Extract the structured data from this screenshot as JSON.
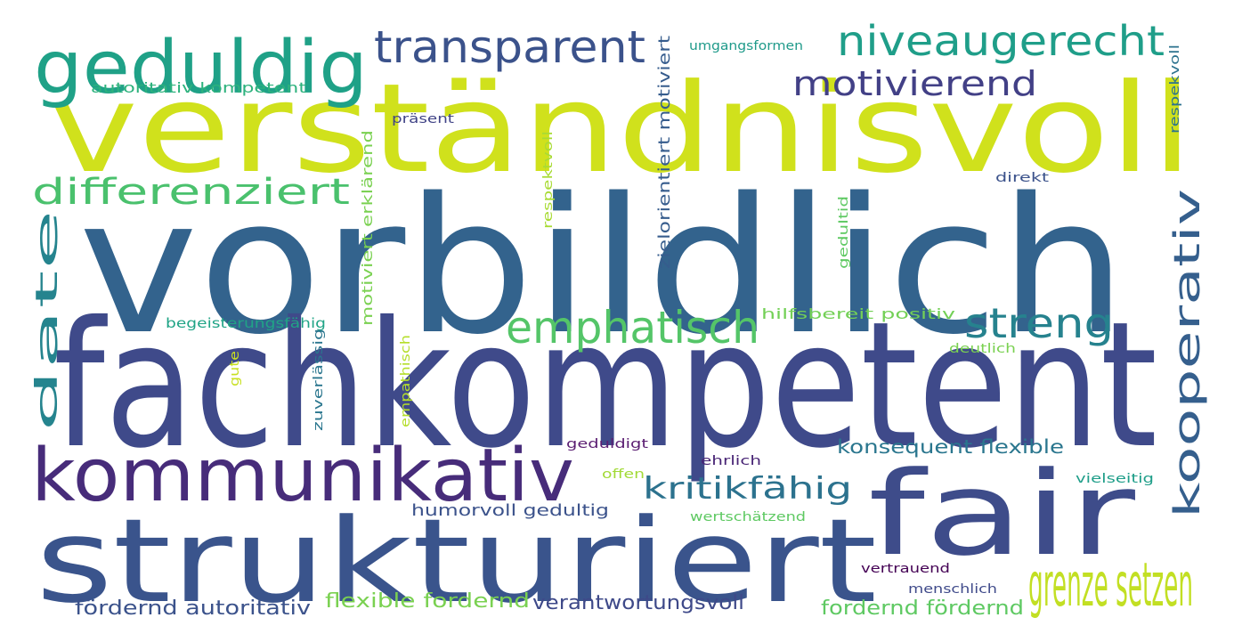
{
  "words": [
    {
      "text": "vorbildlich",
      "color": "#33638d"
    },
    {
      "text": "fachkompetent",
      "color": "#3f4a8a"
    },
    {
      "text": "verständnisvoll",
      "color": "#d0e11c"
    },
    {
      "text": "strukturiert",
      "color": "#3a548c"
    },
    {
      "text": "fair",
      "color": "#3e4c8a"
    },
    {
      "text": "kommunikativ",
      "color": "#472c7a"
    },
    {
      "text": "geduldig",
      "color": "#1fa187"
    },
    {
      "text": "transparent",
      "color": "#3b528b"
    },
    {
      "text": "niveaugerecht",
      "color": "#1f9e89"
    },
    {
      "text": "motivierend",
      "color": "#424086"
    },
    {
      "text": "differenziert",
      "color": "#4ac16d"
    },
    {
      "text": "emphatisch",
      "color": "#54c568"
    },
    {
      "text": "streng",
      "color": "#26828e"
    },
    {
      "text": "grenze setzen",
      "color": "#c2df23"
    },
    {
      "text": "kooperativ",
      "color": "#355f8d"
    },
    {
      "text": "date",
      "color": "#25848e"
    },
    {
      "text": "kritikfähig",
      "color": "#2c728e"
    },
    {
      "text": "konsequent flexible",
      "color": "#2a768e"
    },
    {
      "text": "fördernd autoritativ",
      "color": "#3b528b"
    },
    {
      "text": "flexible fordernd",
      "color": "#7ad151"
    },
    {
      "text": "verantwortungsvoll",
      "color": "#3e4989"
    },
    {
      "text": "fordernd fördernd",
      "color": "#5ec962"
    },
    {
      "text": "humorvoll gedultig",
      "color": "#3b528b"
    },
    {
      "text": "autoritativ kompetent",
      "color": "#2db27d"
    },
    {
      "text": "umgangsformen",
      "color": "#1f9a8a"
    },
    {
      "text": "präsent",
      "color": "#414487"
    },
    {
      "text": "begeisterungsfähig",
      "color": "#20a486"
    },
    {
      "text": "hilfsbereit positiv",
      "color": "#73d056"
    },
    {
      "text": "deutlich",
      "color": "#7ad151"
    },
    {
      "text": "direkt",
      "color": "#3b528b"
    },
    {
      "text": "geduldigt",
      "color": "#5b1e72"
    },
    {
      "text": "ehrlich",
      "color": "#482475"
    },
    {
      "text": "offen",
      "color": "#a2da37"
    },
    {
      "text": "vielseitig",
      "color": "#1f9e89"
    },
    {
      "text": "wertschätzend",
      "color": "#5ec962"
    },
    {
      "text": "vertrauend",
      "color": "#440154"
    },
    {
      "text": "menschlich",
      "color": "#3f4a8a"
    },
    {
      "text": "zielorientiert motiviert",
      "color": "#365c8d"
    },
    {
      "text": "motiviert erklärend",
      "color": "#7ad151"
    },
    {
      "text": "respektvoll",
      "color": "#a8db34"
    },
    {
      "text": "zuverlässig",
      "color": "#2a768e"
    },
    {
      "text": "empathisch",
      "color": "#b5de2b"
    },
    {
      "text": "gute",
      "color": "#c8e020"
    },
    {
      "text": "geduItid",
      "color": "#5ec962"
    },
    {
      "text": "respekvoll",
      "color": "#2c728e"
    }
  ]
}
